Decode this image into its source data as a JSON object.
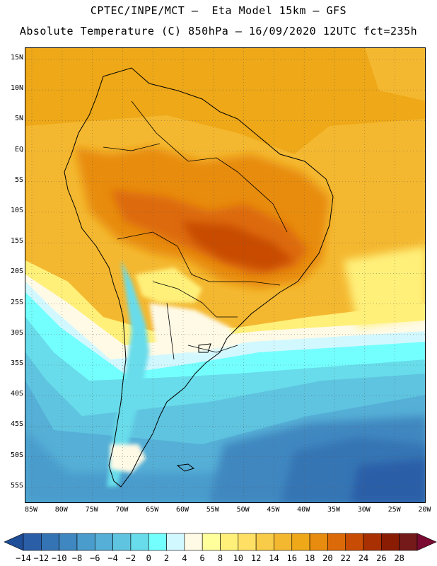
{
  "header": {
    "line1": "CPTEC/INPE/MCT –  Eta Model 15km – GFS",
    "line2": "Absolute Temperature (C) 850hPa – 16/09/2020 12UTC fct=235h"
  },
  "map": {
    "region": "South America",
    "lat_range": [
      -58,
      17
    ],
    "lon_range": [
      -86,
      -20
    ],
    "lat_ticks": [
      "15N",
      "10N",
      "5N",
      "EQ",
      "5S",
      "10S",
      "15S",
      "20S",
      "25S",
      "30S",
      "35S",
      "40S",
      "45S",
      "50S",
      "55S"
    ],
    "lon_ticks": [
      "85W",
      "80W",
      "75W",
      "70W",
      "65W",
      "60W",
      "55W",
      "50W",
      "45W",
      "40W",
      "35W",
      "30W",
      "25W",
      "20W"
    ]
  },
  "colorbar": {
    "labels": [
      "-14",
      "-12",
      "-10",
      "-8",
      "-6",
      "-4",
      "-2",
      "0",
      "2",
      "4",
      "6",
      "8",
      "10",
      "12",
      "14",
      "16",
      "18",
      "20",
      "22",
      "24",
      "26",
      "28"
    ],
    "colors": [
      "#1f4e98",
      "#2a5fa8",
      "#3474b4",
      "#3f87c0",
      "#4a9ccc",
      "#55afd6",
      "#5fc4e0",
      "#68dcea",
      "#74ffff",
      "#d2f8ff",
      "#fffae6",
      "#ffff9c",
      "#fff07a",
      "#ffe064",
      "#f8cc48",
      "#f4b830",
      "#eea818",
      "#e88c10",
      "#dd6a08",
      "#c84c04",
      "#a83002",
      "#8a1c04",
      "#741a1a",
      "#7a0a32"
    ]
  }
}
